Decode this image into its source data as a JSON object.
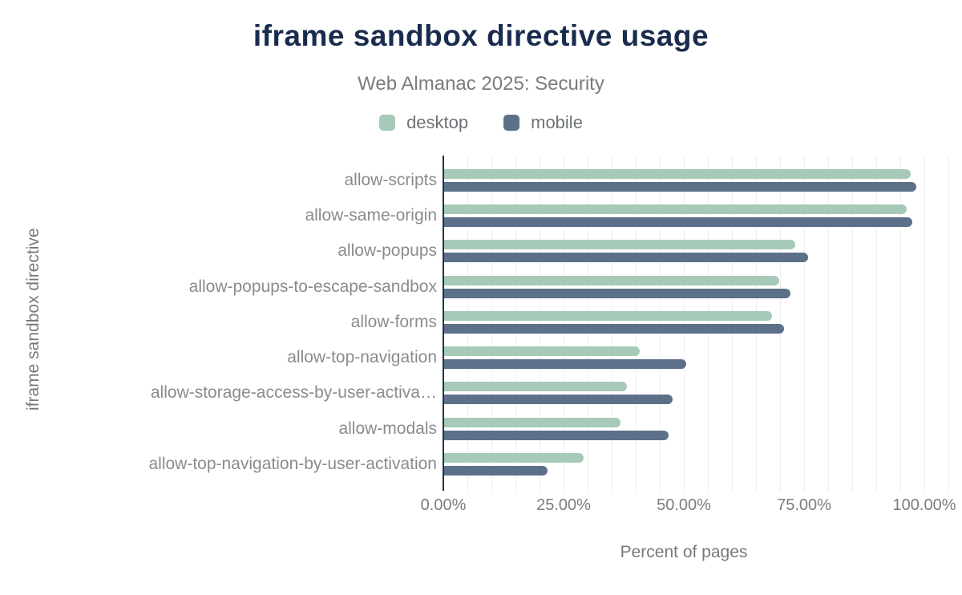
{
  "header": {
    "title": "iframe sandbox directive usage",
    "subtitle": "Web Almanac 2025: Security"
  },
  "legend": {
    "items": [
      {
        "label": "desktop",
        "color_key": "desktop"
      },
      {
        "label": "mobile",
        "color_key": "mobile"
      }
    ]
  },
  "axes": {
    "x_title": "Percent of pages",
    "y_title": "iframe sandbox directive"
  },
  "colors": {
    "desktop": "#a6cab7",
    "mobile": "#5d7089",
    "title": "#1a2c4e",
    "subtitle": "#7c7c7c",
    "legend_label": "#6e7276",
    "axis_line": "#1f3251",
    "gridline": "#ededed",
    "category_label": "#898c8f",
    "tick_label": "#797d82",
    "axis_title": "#75797e"
  },
  "chart_data": {
    "type": "bar",
    "orientation": "horizontal",
    "title": "iframe sandbox directive usage",
    "subtitle": "Web Almanac 2025: Security",
    "xlabel": "Percent of pages",
    "ylabel": "iframe sandbox directive",
    "unit": "%",
    "grid": true,
    "legend_position": "top",
    "xlim": [
      0,
      105
    ],
    "grid_step": 5,
    "categories": [
      "allow-scripts",
      "allow-same-origin",
      "allow-popups",
      "allow-popups-to-escape-sandbox",
      "allow-forms",
      "allow-top-navigation",
      "allow-storage-access-by-user-activa…",
      "allow-modals",
      "allow-top-navigation-by-user-activation"
    ],
    "series": [
      {
        "name": "desktop",
        "values": [
          97.2,
          96.3,
          73.2,
          69.9,
          68.4,
          40.9,
          38.2,
          36.8,
          29.2
        ]
      },
      {
        "name": "mobile",
        "values": [
          98.3,
          97.5,
          75.8,
          72.2,
          70.9,
          50.5,
          47.6,
          46.9,
          21.6
        ]
      }
    ],
    "x_ticks": [
      {
        "label": "0.00%",
        "value": 0
      },
      {
        "label": "25.00%",
        "value": 25
      },
      {
        "label": "50.00%",
        "value": 50
      },
      {
        "label": "75.00%",
        "value": 75
      },
      {
        "label": "100.00%",
        "value": 100
      }
    ]
  }
}
